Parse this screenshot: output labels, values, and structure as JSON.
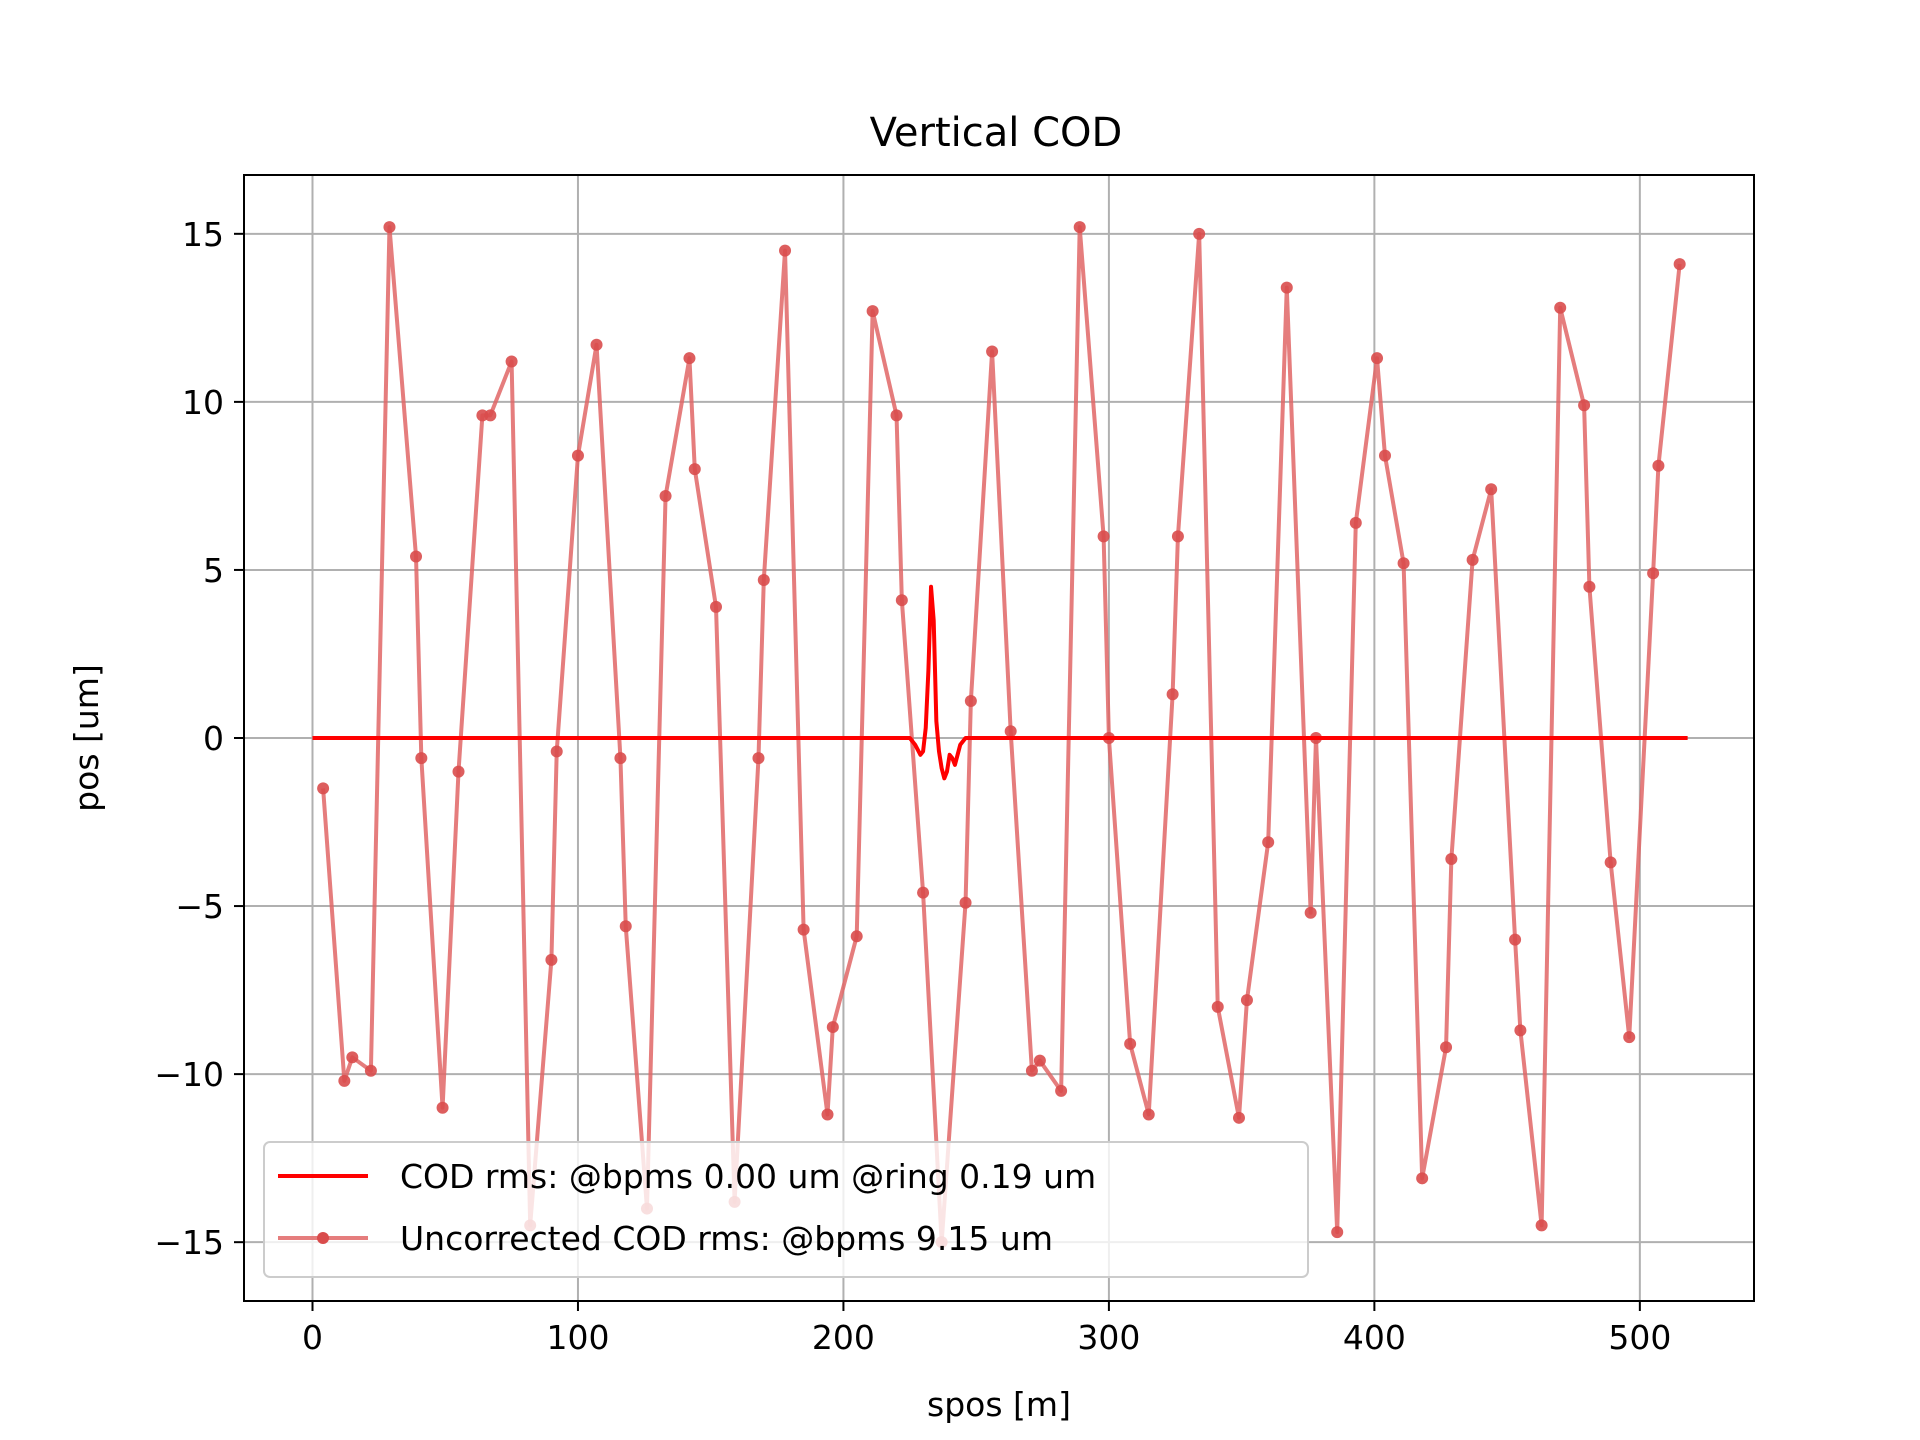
{
  "chart_data": {
    "type": "line",
    "title": "Vertical COD",
    "xlabel": "spos [m]",
    "ylabel": "pos [um]",
    "xlim": [
      -25.8,
      543
    ],
    "ylim": [
      -16.75,
      16.75
    ],
    "xticks": [
      0,
      100,
      200,
      300,
      400,
      500
    ],
    "yticks": [
      -15,
      -10,
      -5,
      0,
      5,
      10,
      15
    ],
    "xtick_labels": [
      "0",
      "100",
      "200",
      "300",
      "400",
      "500"
    ],
    "ytick_labels": [
      "−15",
      "−10",
      "−5",
      "0",
      "5",
      "10",
      "15"
    ],
    "grid": true,
    "legend_position": "lower-left",
    "series": [
      {
        "name": "COD rms: @bpms 0.00 um @ring 0.19 um",
        "color": "#ff0000",
        "marker": "none",
        "x": [
          0,
          225,
          227,
          229,
          230,
          231,
          232,
          233,
          234,
          235,
          236,
          237,
          238,
          239,
          240,
          241,
          242,
          243,
          244,
          246,
          248,
          250,
          518
        ],
        "y": [
          0,
          0,
          -0.2,
          -0.5,
          -0.4,
          0.3,
          2.0,
          4.5,
          3.5,
          0.5,
          -0.4,
          -0.9,
          -1.2,
          -1.0,
          -0.5,
          -0.6,
          -0.8,
          -0.5,
          -0.2,
          0,
          0,
          0,
          0
        ]
      },
      {
        "name": "Uncorrected COD rms: @bpms 9.15 um",
        "color": "#e06666",
        "marker": "circle",
        "x": [
          4,
          12,
          15,
          22,
          29,
          39,
          41,
          49,
          55,
          64,
          67,
          75,
          82,
          90,
          92,
          100,
          107,
          116,
          118,
          126,
          133,
          142,
          144,
          152,
          159,
          168,
          170,
          178,
          185,
          194,
          196,
          205,
          211,
          220,
          222,
          230,
          237,
          246,
          248,
          256,
          263,
          271,
          274,
          282,
          289,
          298,
          300,
          308,
          315,
          324,
          326,
          334,
          341,
          349,
          352,
          360,
          367,
          376,
          378,
          386,
          393,
          401,
          404,
          411,
          418,
          427,
          429,
          437,
          444,
          453,
          455,
          463,
          470,
          479,
          481,
          489,
          496,
          505,
          507,
          515
        ],
        "y": [
          -1.5,
          -10.2,
          -9.5,
          -9.9,
          15.2,
          5.4,
          -0.6,
          -11.0,
          -1.0,
          9.6,
          9.6,
          11.2,
          -14.5,
          -6.6,
          -0.4,
          8.4,
          11.7,
          -0.6,
          -5.6,
          -14.0,
          7.2,
          11.3,
          8.0,
          3.9,
          -13.8,
          -0.6,
          4.7,
          14.5,
          -5.7,
          -11.2,
          -8.6,
          -5.9,
          12.7,
          9.6,
          4.1,
          -4.6,
          -15.0,
          -4.9,
          1.1,
          11.5,
          0.2,
          -9.9,
          -9.6,
          -10.5,
          15.2,
          6.0,
          0.0,
          -9.1,
          -11.2,
          1.3,
          6.0,
          15.0,
          -8.0,
          -11.3,
          -7.8,
          -3.1,
          13.4,
          -5.2,
          0.0,
          -14.7,
          6.4,
          11.3,
          8.4,
          5.2,
          -13.1,
          -9.2,
          -3.6,
          5.3,
          7.4,
          -6.0,
          -8.7,
          -14.5,
          12.8,
          9.9,
          4.5,
          -3.7,
          -8.9,
          4.9,
          8.1,
          14.1
        ]
      }
    ]
  }
}
